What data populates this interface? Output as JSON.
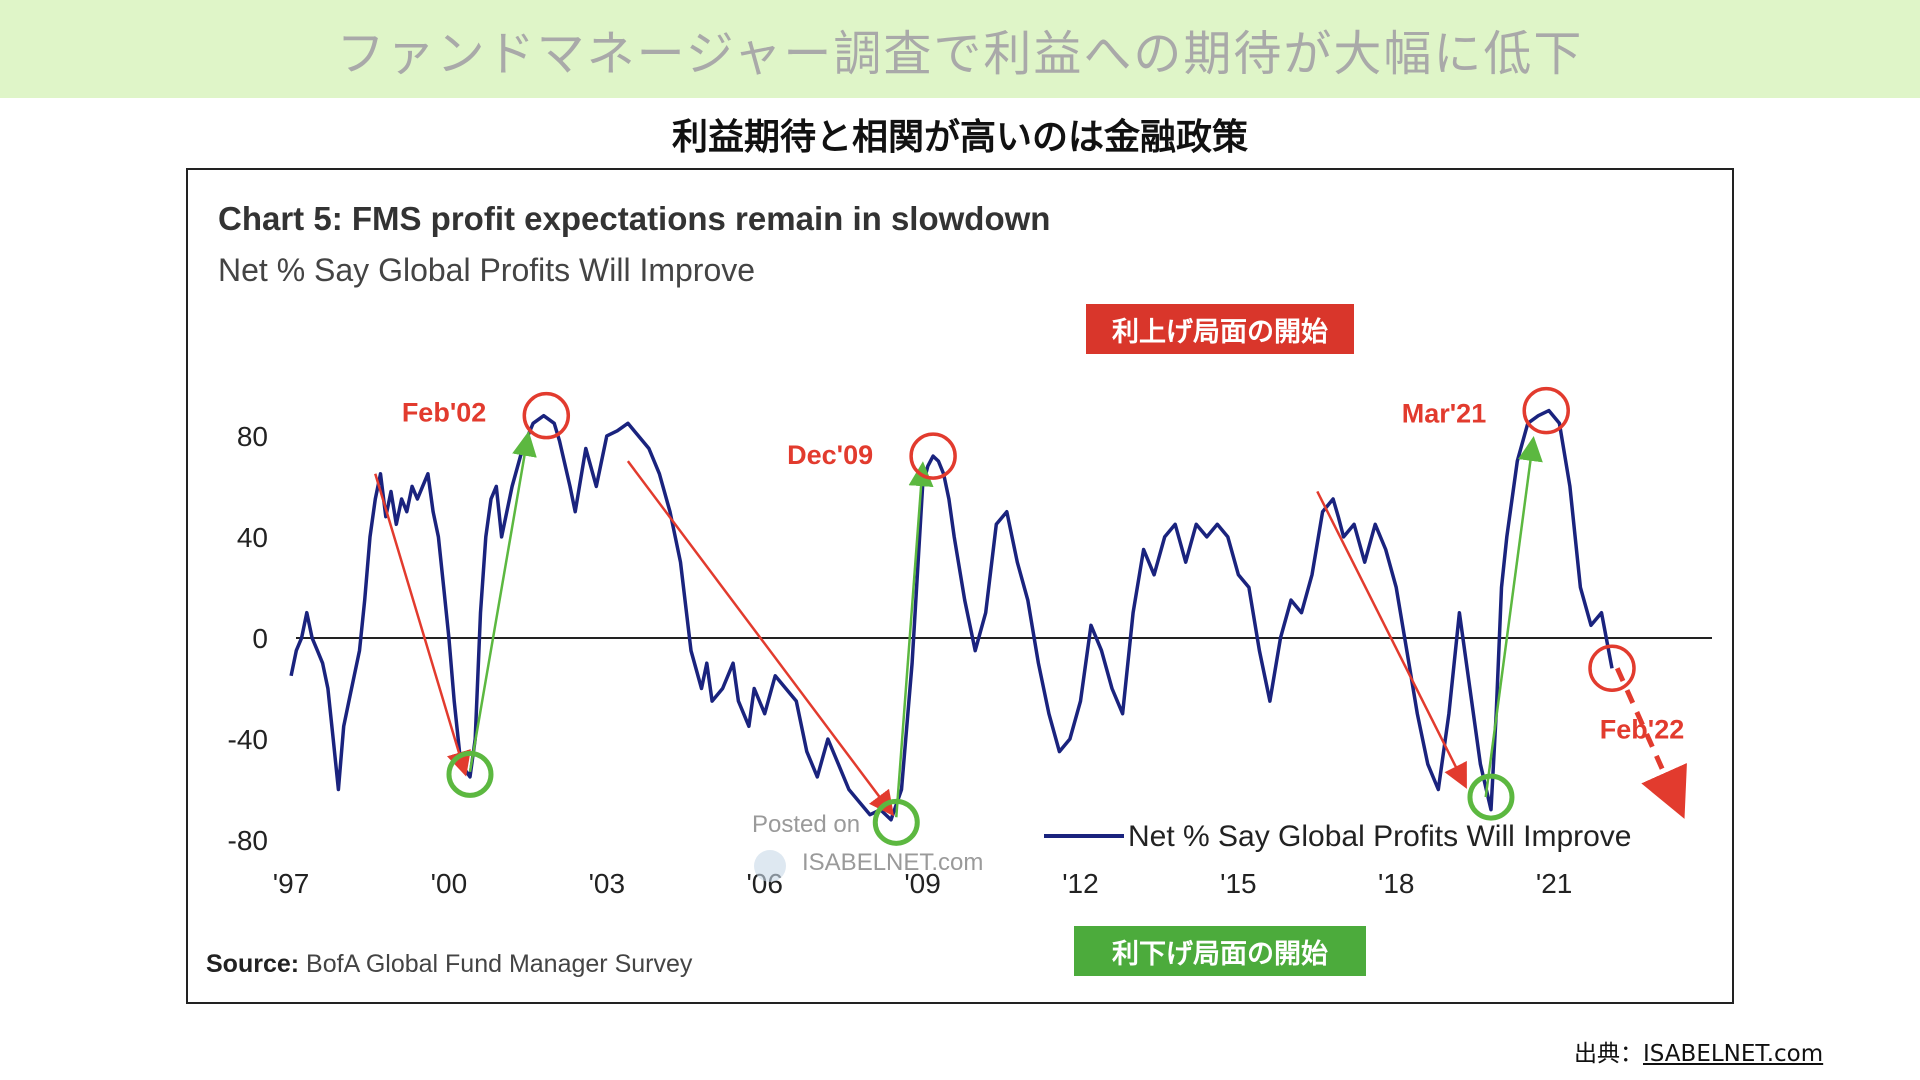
{
  "banner": {
    "title": "ファンドマネージャー調査で利益への期待が大幅に低下"
  },
  "subtitle": "利益期待と相関が高いのは金融政策",
  "tags": {
    "hike_start": "利上げ局面の開始",
    "cut_start": "利下げ局面の開始"
  },
  "watermark": {
    "posted": "Posted on",
    "site": "ISABELNET.com"
  },
  "footer": {
    "credit_prefix": "出典：",
    "credit_link": "ISABELNET.com"
  },
  "colors": {
    "series": "#1a237e",
    "down_arrow": "#e23b2e",
    "up_arrow": "#5cb840",
    "banner": "#dff5c8"
  },
  "chart_data": {
    "type": "line",
    "title": "Chart 5: FMS profit expectations remain in slowdown",
    "subtitle": "Net % Say Global Profits Will Improve",
    "source_label": "Source:",
    "source_text": "BofA Global Fund Manager Survey",
    "x_ticks": [
      {
        "label": "'97",
        "x": 1997
      },
      {
        "label": "'00",
        "x": 2000
      },
      {
        "label": "'03",
        "x": 2003
      },
      {
        "label": "'06",
        "x": 2006
      },
      {
        "label": "'09",
        "x": 2009
      },
      {
        "label": "'12",
        "x": 2012
      },
      {
        "label": "'15",
        "x": 2015
      },
      {
        "label": "'18",
        "x": 2018
      },
      {
        "label": "'21",
        "x": 2021
      }
    ],
    "y_ticks": [
      80,
      40,
      0,
      -40,
      -80
    ],
    "xlim": [
      1996.6,
      2024.0
    ],
    "ylim": [
      -80,
      95
    ],
    "zero_line": true,
    "legend": {
      "label": "Net % Say Global Profits Will Improve",
      "position": "bottom-right"
    },
    "series": [
      {
        "name": "Net % Say Global Profits Will Improve",
        "color": "#1a237e",
        "points": [
          [
            1997.0,
            -15
          ],
          [
            1997.1,
            -5
          ],
          [
            1997.2,
            0
          ],
          [
            1997.3,
            10
          ],
          [
            1997.4,
            0
          ],
          [
            1997.5,
            -5
          ],
          [
            1997.6,
            -10
          ],
          [
            1997.7,
            -20
          ],
          [
            1997.8,
            -40
          ],
          [
            1997.9,
            -60
          ],
          [
            1998.0,
            -35
          ],
          [
            1998.1,
            -25
          ],
          [
            1998.2,
            -15
          ],
          [
            1998.3,
            -5
          ],
          [
            1998.4,
            15
          ],
          [
            1998.5,
            40
          ],
          [
            1998.6,
            55
          ],
          [
            1998.7,
            65
          ],
          [
            1998.8,
            48
          ],
          [
            1998.9,
            58
          ],
          [
            1999.0,
            45
          ],
          [
            1999.1,
            55
          ],
          [
            1999.2,
            50
          ],
          [
            1999.3,
            60
          ],
          [
            1999.4,
            55
          ],
          [
            1999.5,
            60
          ],
          [
            1999.6,
            65
          ],
          [
            1999.7,
            50
          ],
          [
            1999.8,
            40
          ],
          [
            1999.9,
            20
          ],
          [
            2000.0,
            0
          ],
          [
            2000.1,
            -25
          ],
          [
            2000.2,
            -45
          ],
          [
            2000.3,
            -52
          ],
          [
            2000.4,
            -55
          ],
          [
            2000.5,
            -40
          ],
          [
            2000.6,
            10
          ],
          [
            2000.7,
            40
          ],
          [
            2000.8,
            55
          ],
          [
            2000.9,
            60
          ],
          [
            2001.0,
            40
          ],
          [
            2001.2,
            60
          ],
          [
            2001.4,
            75
          ],
          [
            2001.6,
            85
          ],
          [
            2001.8,
            88
          ],
          [
            2002.0,
            85
          ],
          [
            2002.1,
            78
          ],
          [
            2002.3,
            60
          ],
          [
            2002.4,
            50
          ],
          [
            2002.6,
            75
          ],
          [
            2002.8,
            60
          ],
          [
            2003.0,
            80
          ],
          [
            2003.2,
            82
          ],
          [
            2003.4,
            85
          ],
          [
            2003.6,
            80
          ],
          [
            2003.8,
            75
          ],
          [
            2004.0,
            65
          ],
          [
            2004.2,
            50
          ],
          [
            2004.4,
            30
          ],
          [
            2004.6,
            -5
          ],
          [
            2004.8,
            -20
          ],
          [
            2004.9,
            -10
          ],
          [
            2005.0,
            -25
          ],
          [
            2005.2,
            -20
          ],
          [
            2005.4,
            -10
          ],
          [
            2005.5,
            -25
          ],
          [
            2005.7,
            -35
          ],
          [
            2005.8,
            -20
          ],
          [
            2006.0,
            -30
          ],
          [
            2006.2,
            -15
          ],
          [
            2006.4,
            -20
          ],
          [
            2006.6,
            -25
          ],
          [
            2006.8,
            -45
          ],
          [
            2007.0,
            -55
          ],
          [
            2007.2,
            -40
          ],
          [
            2007.4,
            -50
          ],
          [
            2007.6,
            -60
          ],
          [
            2007.8,
            -65
          ],
          [
            2008.0,
            -70
          ],
          [
            2008.2,
            -68
          ],
          [
            2008.4,
            -72
          ],
          [
            2008.6,
            -60
          ],
          [
            2008.8,
            -10
          ],
          [
            2009.0,
            60
          ],
          [
            2009.1,
            68
          ],
          [
            2009.2,
            72
          ],
          [
            2009.3,
            70
          ],
          [
            2009.4,
            65
          ],
          [
            2009.5,
            55
          ],
          [
            2009.6,
            40
          ],
          [
            2009.8,
            15
          ],
          [
            2010.0,
            -5
          ],
          [
            2010.2,
            10
          ],
          [
            2010.4,
            45
          ],
          [
            2010.6,
            50
          ],
          [
            2010.8,
            30
          ],
          [
            2011.0,
            15
          ],
          [
            2011.2,
            -10
          ],
          [
            2011.4,
            -30
          ],
          [
            2011.6,
            -45
          ],
          [
            2011.8,
            -40
          ],
          [
            2012.0,
            -25
          ],
          [
            2012.2,
            5
          ],
          [
            2012.4,
            -5
          ],
          [
            2012.6,
            -20
          ],
          [
            2012.8,
            -30
          ],
          [
            2013.0,
            10
          ],
          [
            2013.2,
            35
          ],
          [
            2013.4,
            25
          ],
          [
            2013.6,
            40
          ],
          [
            2013.8,
            45
          ],
          [
            2014.0,
            30
          ],
          [
            2014.2,
            45
          ],
          [
            2014.4,
            40
          ],
          [
            2014.6,
            45
          ],
          [
            2014.8,
            40
          ],
          [
            2015.0,
            25
          ],
          [
            2015.2,
            20
          ],
          [
            2015.4,
            -5
          ],
          [
            2015.6,
            -25
          ],
          [
            2015.8,
            0
          ],
          [
            2016.0,
            15
          ],
          [
            2016.2,
            10
          ],
          [
            2016.4,
            25
          ],
          [
            2016.6,
            50
          ],
          [
            2016.8,
            55
          ],
          [
            2016.9,
            48
          ],
          [
            2017.0,
            40
          ],
          [
            2017.2,
            45
          ],
          [
            2017.4,
            30
          ],
          [
            2017.6,
            45
          ],
          [
            2017.8,
            35
          ],
          [
            2018.0,
            20
          ],
          [
            2018.2,
            -5
          ],
          [
            2018.4,
            -30
          ],
          [
            2018.6,
            -50
          ],
          [
            2018.8,
            -60
          ],
          [
            2019.0,
            -30
          ],
          [
            2019.2,
            10
          ],
          [
            2019.4,
            -20
          ],
          [
            2019.6,
            -50
          ],
          [
            2019.8,
            -68
          ],
          [
            2019.9,
            -30
          ],
          [
            2020.0,
            20
          ],
          [
            2020.1,
            40
          ],
          [
            2020.3,
            70
          ],
          [
            2020.5,
            85
          ],
          [
            2020.7,
            88
          ],
          [
            2020.9,
            90
          ],
          [
            2021.1,
            85
          ],
          [
            2021.3,
            60
          ],
          [
            2021.5,
            20
          ],
          [
            2021.7,
            5
          ],
          [
            2021.9,
            10
          ],
          [
            2022.1,
            -12
          ]
        ]
      }
    ],
    "annotations": [
      {
        "label": "Feb'02",
        "x": 2001.85,
        "y": 88,
        "type": "peak"
      },
      {
        "label": "Dec'09",
        "x": 2009.2,
        "y": 72,
        "type": "peak"
      },
      {
        "label": "Mar'21",
        "x": 2020.85,
        "y": 90,
        "type": "peak"
      },
      {
        "label": "Feb'22",
        "x": 2022.1,
        "y": -12,
        "type": "latest"
      }
    ],
    "trend_down": [
      [
        [
          1998.6,
          65
        ],
        [
          2000.3,
          -53
        ]
      ],
      [
        [
          2003.4,
          70
        ],
        [
          2008.4,
          -69
        ]
      ],
      [
        [
          2016.5,
          58
        ],
        [
          2019.3,
          -58
        ]
      ]
    ],
    "trend_up": [
      [
        [
          2000.4,
          -53
        ],
        [
          2001.5,
          80
        ]
      ],
      [
        [
          2008.5,
          -71
        ],
        [
          2009.0,
          68
        ]
      ],
      [
        [
          2019.7,
          -63
        ],
        [
          2020.6,
          78
        ]
      ]
    ],
    "trough_markers": [
      {
        "x": 2000.4,
        "y": -54
      },
      {
        "x": 2008.5,
        "y": -73
      },
      {
        "x": 2019.8,
        "y": -63
      }
    ],
    "projection": {
      "from": [
        2022.2,
        -12
      ],
      "to": [
        2023.4,
        -68
      ]
    }
  }
}
